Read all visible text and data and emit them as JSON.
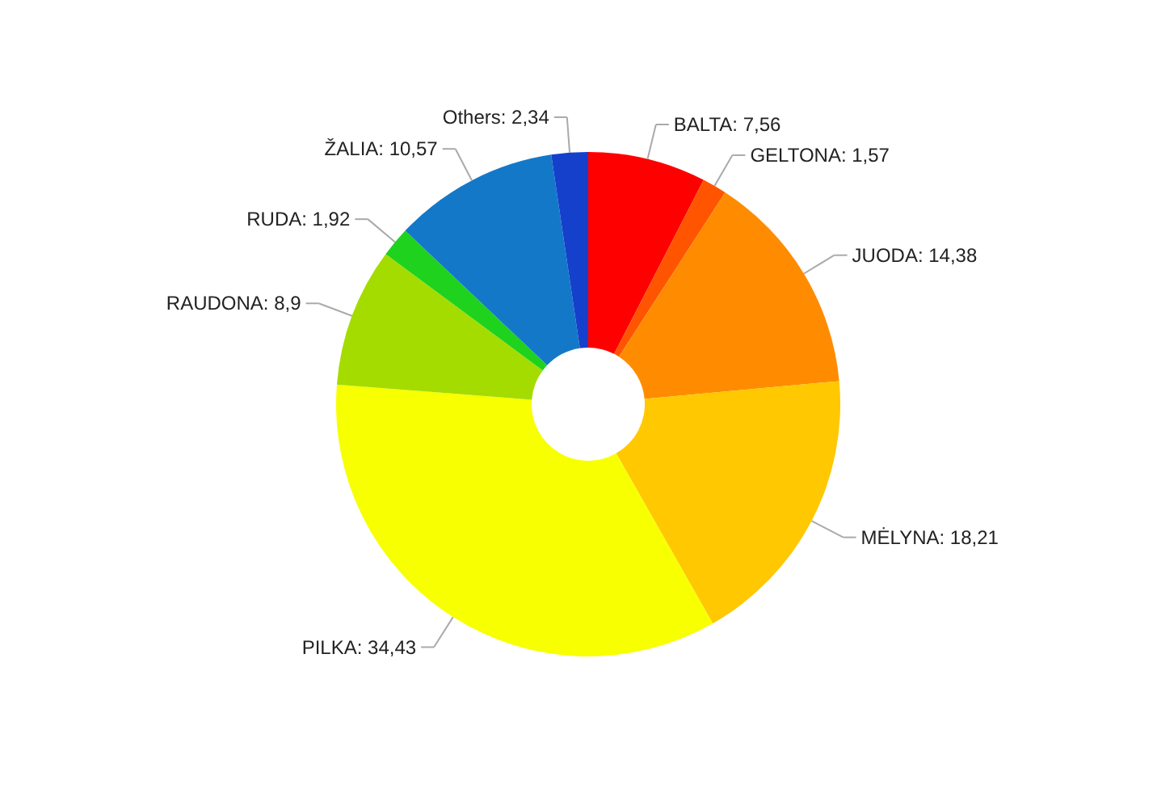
{
  "chart_data": {
    "type": "donut",
    "categories": [
      "BALTA",
      "GELTONA",
      "JUODA",
      "MĖLYNA",
      "PILKA",
      "RAUDONA",
      "RUDA",
      "ŽALIA",
      "Others"
    ],
    "values": [
      7.56,
      1.57,
      14.38,
      18.21,
      34.43,
      8.9,
      1.92,
      10.57,
      2.34
    ],
    "value_labels": [
      "7,56",
      "1,57",
      "14,38",
      "18,21",
      "34,43",
      "8,9",
      "1,92",
      "10,57",
      "2,34"
    ],
    "colors": [
      "#ff0000",
      "#ff5500",
      "#ff8c00",
      "#ffc800",
      "#f8ff00",
      "#a5dc00",
      "#1ed21e",
      "#1478c8",
      "#1440cc"
    ]
  }
}
